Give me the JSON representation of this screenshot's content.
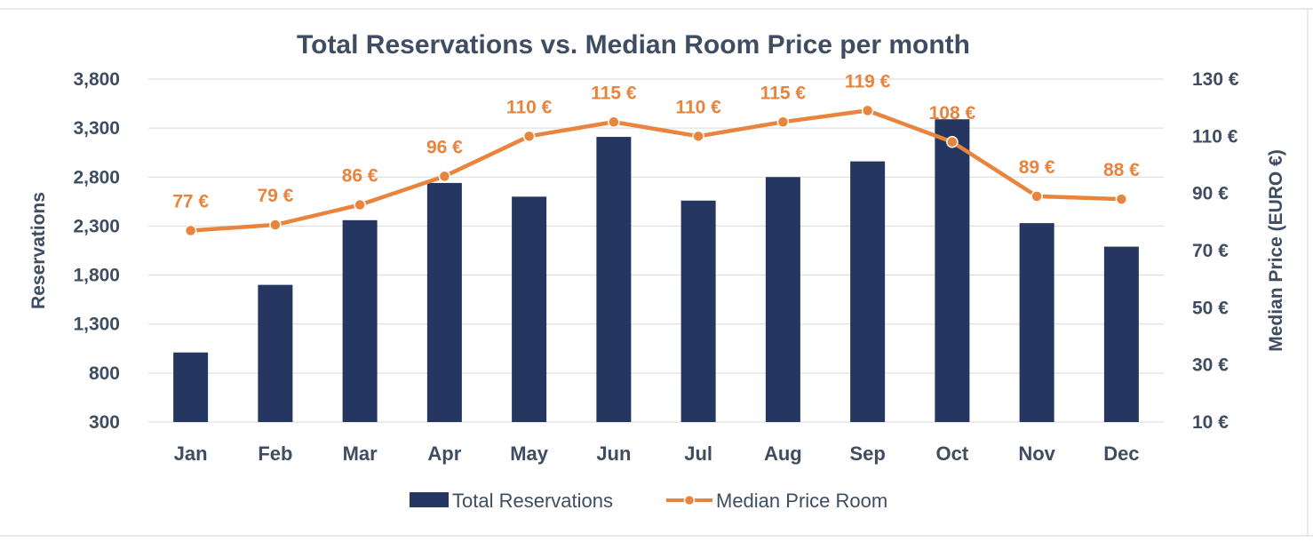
{
  "chart_data": {
    "type": "bar",
    "title": "Total Reservations vs. Median Room Price per month",
    "xlabel": "",
    "ylabel": "Reservations",
    "y2label": "Median Price (EURO €)",
    "categories": [
      "Jan",
      "Feb",
      "Mar",
      "Apr",
      "May",
      "Jun",
      "Jul",
      "Aug",
      "Sep",
      "Oct",
      "Nov",
      "Dec"
    ],
    "ylim": [
      300,
      3800
    ],
    "yticks": [
      "3,800",
      "3,300",
      "2,800",
      "2,300",
      "1,800",
      "1,300",
      "800",
      "300"
    ],
    "y2lim": [
      10,
      130
    ],
    "y2ticks": [
      "130 €",
      "110 €",
      "90 €",
      "70 €",
      "50 €",
      "30 €",
      "10 €"
    ],
    "grid": true,
    "legend_position": "bottom",
    "series": [
      {
        "name": "Total Reservations",
        "type": "bar",
        "axis": "left",
        "color": "#253761",
        "values": [
          1010,
          1700,
          2360,
          2740,
          2600,
          3210,
          2560,
          2800,
          2960,
          3390,
          2330,
          2090
        ]
      },
      {
        "name": "Median Price Room",
        "type": "line",
        "axis": "right",
        "color": "#e8843c",
        "values": [
          77,
          79,
          86,
          96,
          110,
          115,
          110,
          115,
          119,
          108,
          89,
          88
        ],
        "labels": [
          "77 €",
          "79 €",
          "86 €",
          "96 €",
          "110 €",
          "115 €",
          "110 €",
          "115 €",
          "119 €",
          "108 €",
          "89 €",
          "88 €"
        ]
      }
    ]
  }
}
